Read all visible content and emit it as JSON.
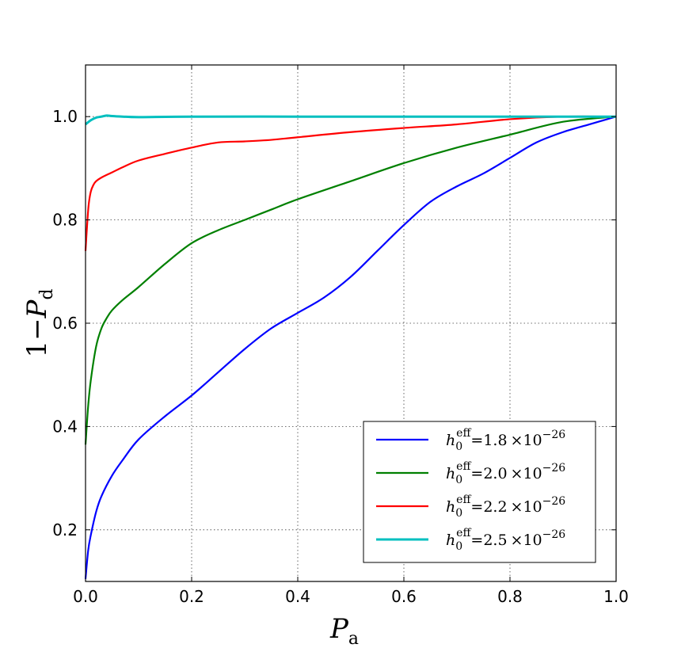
{
  "chart_data": {
    "type": "line",
    "xlabel": {
      "main": "P",
      "sub": "a"
    },
    "ylabel": {
      "prefix": "1−",
      "main": "P",
      "sub": "d"
    },
    "xlim": [
      0.0,
      1.0
    ],
    "ylim": [
      0.1,
      1.1
    ],
    "xticks": [
      0.0,
      0.2,
      0.4,
      0.6,
      0.8,
      1.0
    ],
    "xtick_labels": [
      "0.0",
      "0.2",
      "0.4",
      "0.6",
      "0.8",
      "1.0"
    ],
    "yticks": [
      0.2,
      0.4,
      0.6,
      0.8,
      1.0
    ],
    "ytick_labels": [
      "0.2",
      "0.4",
      "0.6",
      "0.8",
      "1.0"
    ],
    "grid": true,
    "legend_position": "lower-right",
    "series": [
      {
        "name": "h0eff = 1.8 ×10−26",
        "legend": {
          "sym": "h",
          "sub": "0",
          "sup": "eff",
          "eq": "=1.8",
          "times": "×10",
          "exp": "−26"
        },
        "color": "#0000ff",
        "x": [
          0.0,
          0.005,
          0.01,
          0.02,
          0.03,
          0.05,
          0.07,
          0.1,
          0.15,
          0.2,
          0.25,
          0.3,
          0.35,
          0.4,
          0.45,
          0.5,
          0.55,
          0.6,
          0.65,
          0.7,
          0.75,
          0.8,
          0.85,
          0.9,
          0.95,
          1.0
        ],
        "y": [
          0.105,
          0.16,
          0.19,
          0.235,
          0.265,
          0.305,
          0.335,
          0.375,
          0.42,
          0.46,
          0.505,
          0.55,
          0.59,
          0.62,
          0.65,
          0.69,
          0.74,
          0.79,
          0.835,
          0.865,
          0.89,
          0.92,
          0.95,
          0.97,
          0.985,
          1.0
        ]
      },
      {
        "name": "h0eff = 2.0 ×10−26",
        "legend": {
          "sym": "h",
          "sub": "0",
          "sup": "eff",
          "eq": "=2.0",
          "times": "×10",
          "exp": "−26"
        },
        "color": "#008000",
        "x": [
          0.0,
          0.005,
          0.01,
          0.02,
          0.03,
          0.04,
          0.05,
          0.07,
          0.1,
          0.15,
          0.2,
          0.25,
          0.3,
          0.35,
          0.4,
          0.5,
          0.6,
          0.7,
          0.8,
          0.9,
          1.0
        ],
        "y": [
          0.365,
          0.44,
          0.49,
          0.555,
          0.59,
          0.61,
          0.625,
          0.645,
          0.67,
          0.715,
          0.755,
          0.78,
          0.8,
          0.82,
          0.84,
          0.875,
          0.91,
          0.94,
          0.965,
          0.99,
          1.0
        ]
      },
      {
        "name": "h0eff = 2.2 ×10−26",
        "legend": {
          "sym": "h",
          "sub": "0",
          "sup": "eff",
          "eq": "=2.2",
          "times": "×10",
          "exp": "−26"
        },
        "color": "#ff0000",
        "x": [
          0.0,
          0.003,
          0.006,
          0.01,
          0.015,
          0.02,
          0.03,
          0.05,
          0.07,
          0.1,
          0.15,
          0.2,
          0.25,
          0.3,
          0.35,
          0.4,
          0.5,
          0.6,
          0.7,
          0.8,
          0.9,
          1.0
        ],
        "y": [
          0.74,
          0.79,
          0.83,
          0.855,
          0.868,
          0.875,
          0.882,
          0.892,
          0.902,
          0.915,
          0.928,
          0.94,
          0.95,
          0.952,
          0.955,
          0.96,
          0.97,
          0.978,
          0.985,
          0.995,
          1.0,
          1.0
        ]
      },
      {
        "name": "h0eff = 2.5 ×10−26",
        "legend": {
          "sym": "h",
          "sub": "0",
          "sup": "eff",
          "eq": "=2.5",
          "times": "×10",
          "exp": "−26"
        },
        "color": "#00bfbf",
        "x": [
          0.0,
          0.01,
          0.02,
          0.03,
          0.04,
          0.05,
          0.07,
          0.1,
          0.2,
          0.4,
          0.6,
          0.8,
          1.0
        ],
        "y": [
          0.985,
          0.993,
          0.998,
          1.0,
          1.002,
          1.001,
          1.0,
          0.999,
          1.0,
          1.0,
          1.0,
          1.0,
          1.0
        ]
      }
    ]
  }
}
